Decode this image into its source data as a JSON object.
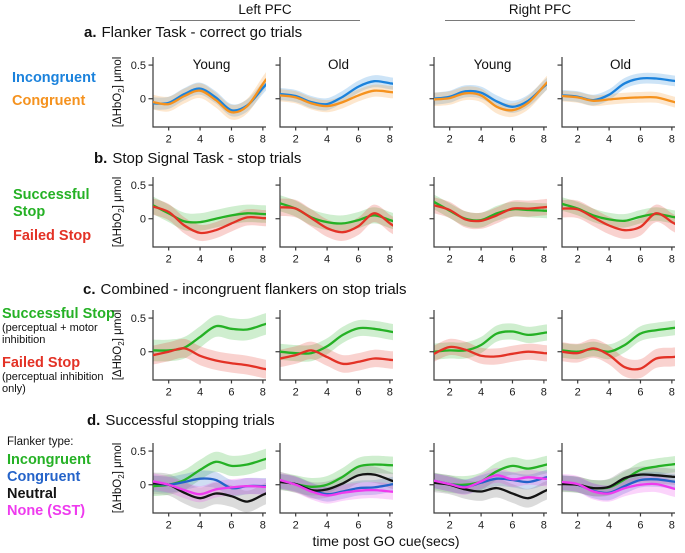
{
  "figure": {
    "region_headers": [
      "Left PFC",
      "Right PFC"
    ],
    "ylabel_pre": "[ΔHbO",
    "ylabel_sub": "2",
    "ylabel_post": "] μmol",
    "xlabel": "time post GO cue(secs)"
  },
  "rows": [
    {
      "label": "a.",
      "title": "Flanker Task - correct go trials",
      "legend": [
        {
          "label": "Incongruent",
          "color": "#1B82DC"
        },
        {
          "label": "Congruent",
          "color": "#F5921E"
        }
      ]
    },
    {
      "label": "b.",
      "title": "Stop Signal Task - stop trials",
      "legend": [
        {
          "label": "Successful Stop",
          "color": "#25B125"
        },
        {
          "label": "Failed Stop",
          "color": "#E33226"
        }
      ]
    },
    {
      "label": "c.",
      "title": "Combined - incongruent flankers on stop trials",
      "legend": [
        {
          "label": "Successful Stop",
          "color": "#25B125",
          "note": "(perceptual + motor inhibition"
        },
        {
          "label": "Failed Stop",
          "color": "#E33226",
          "note": "(perceptual inhibition only)"
        }
      ]
    },
    {
      "label": "d.",
      "title": "Successful stopping trials",
      "legend_header": "Flanker type:",
      "legend": [
        {
          "label": "Incongruent",
          "color": "#25B125"
        },
        {
          "label": "Congruent",
          "color": "#2463C9"
        },
        {
          "label": "Neutral",
          "color": "#141414"
        },
        {
          "label": "None (SST)",
          "color": "#EE3BEE"
        }
      ]
    }
  ],
  "chart_data": {
    "type": "line",
    "x": [
      1,
      2,
      3,
      4,
      5,
      6,
      7,
      8
    ],
    "xlabel": "time post GO cue(secs)",
    "ylabel": "[ΔHbO2] μmol",
    "ylim": [
      -0.42,
      0.62
    ],
    "yticks": [
      0.5,
      0
    ],
    "ytick_labels": [
      "0.5",
      "0"
    ],
    "xticks": [
      2,
      4,
      6,
      8
    ],
    "grid": false,
    "panels": [
      {
        "row": "a",
        "region": "Left PFC",
        "group": "Young",
        "series": [
          {
            "name": "Incongruent",
            "color": "#1B82DC",
            "band": 0.09,
            "values": [
              -0.07,
              -0.06,
              0.07,
              0.15,
              0.02,
              -0.17,
              -0.1,
              0.16
            ]
          },
          {
            "name": "Congruent",
            "color": "#F5921E",
            "band": 0.11,
            "values": [
              -0.05,
              -0.08,
              0.04,
              0.12,
              -0.02,
              -0.2,
              -0.11,
              0.22
            ]
          }
        ]
      },
      {
        "row": "a",
        "region": "Left PFC",
        "group": "Old",
        "series": [
          {
            "name": "Incongruent",
            "color": "#1B82DC",
            "band": 0.09,
            "values": [
              0.07,
              0.04,
              -0.05,
              -0.08,
              0.03,
              0.18,
              0.26,
              0.23
            ]
          },
          {
            "name": "Congruent",
            "color": "#F5921E",
            "band": 0.09,
            "values": [
              0.05,
              0.02,
              -0.07,
              -0.11,
              -0.05,
              0.05,
              0.12,
              0.1
            ]
          }
        ]
      },
      {
        "row": "a",
        "region": "Right PFC",
        "group": "Young",
        "series": [
          {
            "name": "Incongruent",
            "color": "#1B82DC",
            "band": 0.09,
            "values": [
              0.0,
              0.03,
              0.11,
              0.09,
              -0.04,
              -0.12,
              -0.03,
              0.18
            ]
          },
          {
            "name": "Congruent",
            "color": "#F5921E",
            "band": 0.1,
            "values": [
              -0.01,
              0.01,
              0.08,
              0.05,
              -0.12,
              -0.17,
              -0.06,
              0.19
            ]
          }
        ]
      },
      {
        "row": "a",
        "region": "Right PFC",
        "group": "Old",
        "series": [
          {
            "name": "Incongruent",
            "color": "#1B82DC",
            "band": 0.08,
            "values": [
              0.05,
              0.03,
              -0.02,
              0.06,
              0.23,
              0.3,
              0.3,
              0.27
            ]
          },
          {
            "name": "Congruent",
            "color": "#F5921E",
            "band": 0.08,
            "values": [
              0.04,
              0.02,
              -0.03,
              -0.01,
              0.01,
              0.02,
              0.02,
              -0.04
            ]
          }
        ]
      },
      {
        "row": "b",
        "region": "Left PFC",
        "group": "Young",
        "series": [
          {
            "name": "Successful Stop",
            "color": "#25B125",
            "band": 0.13,
            "values": [
              0.2,
              0.08,
              -0.04,
              -0.05,
              0.0,
              0.05,
              0.08,
              0.07
            ]
          },
          {
            "name": "Failed Stop",
            "color": "#E33226",
            "band": 0.12,
            "values": [
              0.18,
              0.1,
              -0.1,
              -0.21,
              -0.17,
              -0.07,
              0.02,
              0.01
            ]
          }
        ]
      },
      {
        "row": "b",
        "region": "Left PFC",
        "group": "Old",
        "series": [
          {
            "name": "Successful Stop",
            "color": "#25B125",
            "band": 0.12,
            "values": [
              0.23,
              0.15,
              0.02,
              -0.05,
              -0.07,
              -0.02,
              0.05,
              -0.02
            ]
          },
          {
            "name": "Failed Stop",
            "color": "#E33226",
            "band": 0.13,
            "values": [
              0.17,
              0.15,
              0.01,
              -0.14,
              -0.2,
              -0.11,
              0.08,
              -0.07
            ]
          }
        ]
      },
      {
        "row": "b",
        "region": "Right PFC",
        "group": "Young",
        "series": [
          {
            "name": "Successful Stop",
            "color": "#25B125",
            "band": 0.11,
            "values": [
              0.25,
              0.12,
              0.0,
              -0.02,
              0.08,
              0.14,
              0.13,
              0.12
            ]
          },
          {
            "name": "Failed Stop",
            "color": "#E33226",
            "band": 0.12,
            "values": [
              0.2,
              0.13,
              -0.01,
              -0.03,
              0.05,
              0.15,
              0.15,
              0.17
            ]
          }
        ]
      },
      {
        "row": "b",
        "region": "Right PFC",
        "group": "Old",
        "series": [
          {
            "name": "Successful Stop",
            "color": "#25B125",
            "band": 0.1,
            "values": [
              0.22,
              0.15,
              0.05,
              -0.01,
              -0.03,
              0.03,
              0.07,
              0.03
            ]
          },
          {
            "name": "Failed Stop",
            "color": "#E33226",
            "band": 0.13,
            "values": [
              0.15,
              0.14,
              0.02,
              -0.1,
              -0.17,
              -0.12,
              0.08,
              -0.05
            ]
          }
        ]
      },
      {
        "row": "c",
        "region": "Left PFC",
        "group": "Young",
        "series": [
          {
            "name": "Successful Stop",
            "color": "#25B125",
            "band": 0.16,
            "values": [
              0.02,
              0.02,
              0.06,
              0.22,
              0.38,
              0.34,
              0.33,
              0.4
            ]
          },
          {
            "name": "Failed Stop",
            "color": "#E33226",
            "band": 0.14,
            "values": [
              -0.05,
              0.0,
              0.05,
              -0.06,
              -0.13,
              -0.17,
              -0.2,
              -0.25
            ]
          }
        ]
      },
      {
        "row": "c",
        "region": "Left PFC",
        "group": "Old",
        "series": [
          {
            "name": "Successful Stop",
            "color": "#25B125",
            "band": 0.12,
            "values": [
              0.0,
              -0.02,
              -0.02,
              0.08,
              0.25,
              0.35,
              0.34,
              0.3
            ]
          },
          {
            "name": "Failed Stop",
            "color": "#E33226",
            "band": 0.13,
            "values": [
              -0.1,
              -0.05,
              0.02,
              -0.08,
              -0.18,
              -0.15,
              -0.1,
              -0.12
            ]
          }
        ]
      },
      {
        "row": "c",
        "region": "Right PFC",
        "group": "Young",
        "series": [
          {
            "name": "Successful Stop",
            "color": "#25B125",
            "band": 0.12,
            "values": [
              0.0,
              0.02,
              0.02,
              0.1,
              0.27,
              0.3,
              0.25,
              0.28
            ]
          },
          {
            "name": "Failed Stop",
            "color": "#E33226",
            "band": 0.12,
            "values": [
              -0.03,
              0.07,
              0.03,
              -0.06,
              -0.07,
              -0.03,
              0.0,
              -0.02
            ]
          }
        ]
      },
      {
        "row": "c",
        "region": "Right PFC",
        "group": "Old",
        "series": [
          {
            "name": "Successful Stop",
            "color": "#25B125",
            "band": 0.11,
            "values": [
              0.02,
              0.0,
              0.04,
              0.0,
              0.1,
              0.27,
              0.32,
              0.35
            ]
          },
          {
            "name": "Failed Stop",
            "color": "#E33226",
            "band": 0.14,
            "values": [
              0.0,
              -0.02,
              0.05,
              -0.05,
              -0.23,
              -0.25,
              -0.1,
              -0.08
            ]
          }
        ]
      },
      {
        "row": "d",
        "region": "Left PFC",
        "group": "Young",
        "series": [
          {
            "name": "Incongruent",
            "color": "#25B125",
            "band": 0.15,
            "values": [
              -0.02,
              0.0,
              0.07,
              0.22,
              0.34,
              0.28,
              0.3,
              0.37
            ]
          },
          {
            "name": "Congruent",
            "color": "#2463C9",
            "band": 0.12,
            "values": [
              0.02,
              0.0,
              0.04,
              0.09,
              0.07,
              -0.05,
              -0.02,
              -0.02
            ]
          },
          {
            "name": "Neutral",
            "color": "#141414",
            "band": 0.16,
            "values": [
              0.02,
              0.0,
              -0.12,
              -0.2,
              -0.13,
              -0.17,
              -0.25,
              -0.15
            ]
          },
          {
            "name": "None (SST)",
            "color": "#EE3BEE",
            "band": 0.12,
            "values": [
              0.05,
              0.0,
              -0.08,
              -0.14,
              -0.07,
              -0.04,
              -0.02,
              -0.03
            ]
          }
        ]
      },
      {
        "row": "d",
        "region": "Left PFC",
        "group": "Old",
        "series": [
          {
            "name": "Incongruent",
            "color": "#25B125",
            "band": 0.13,
            "values": [
              0.06,
              0.01,
              -0.03,
              0.0,
              0.12,
              0.27,
              0.3,
              0.29
            ]
          },
          {
            "name": "Congruent",
            "color": "#2463C9",
            "band": 0.11,
            "values": [
              0.05,
              0.01,
              -0.08,
              -0.14,
              -0.1,
              -0.05,
              -0.04,
              0.0
            ]
          },
          {
            "name": "Neutral",
            "color": "#141414",
            "band": 0.12,
            "values": [
              0.04,
              0.01,
              -0.08,
              -0.07,
              0.02,
              0.14,
              0.15,
              0.07
            ]
          },
          {
            "name": "None (SST)",
            "color": "#EE3BEE",
            "band": 0.12,
            "values": [
              0.07,
              0.0,
              -0.1,
              -0.16,
              -0.12,
              -0.09,
              -0.08,
              -0.1
            ]
          }
        ]
      },
      {
        "row": "d",
        "region": "Right PFC",
        "group": "Young",
        "series": [
          {
            "name": "Incongruent",
            "color": "#25B125",
            "band": 0.13,
            "values": [
              0.05,
              0.01,
              0.0,
              0.05,
              0.2,
              0.28,
              0.24,
              0.29
            ]
          },
          {
            "name": "Congruent",
            "color": "#2463C9",
            "band": 0.11,
            "values": [
              0.06,
              0.01,
              -0.03,
              0.03,
              0.09,
              0.07,
              0.04,
              0.1
            ]
          },
          {
            "name": "Neutral",
            "color": "#141414",
            "band": 0.14,
            "values": [
              0.03,
              0.0,
              -0.07,
              -0.1,
              -0.05,
              -0.13,
              -0.2,
              -0.1
            ]
          },
          {
            "name": "None (SST)",
            "color": "#EE3BEE",
            "band": 0.11,
            "values": [
              0.06,
              0.01,
              -0.04,
              0.05,
              0.14,
              0.08,
              0.11,
              0.09
            ]
          }
        ]
      },
      {
        "row": "d",
        "region": "Right PFC",
        "group": "Old",
        "series": [
          {
            "name": "Incongruent",
            "color": "#25B125",
            "band": 0.12,
            "values": [
              0.02,
              0.0,
              -0.05,
              -0.04,
              0.08,
              0.22,
              0.27,
              0.3
            ]
          },
          {
            "name": "Congruent",
            "color": "#2463C9",
            "band": 0.11,
            "values": [
              0.03,
              0.0,
              -0.09,
              -0.12,
              -0.02,
              0.07,
              0.08,
              0.05
            ]
          },
          {
            "name": "Neutral",
            "color": "#141414",
            "band": 0.12,
            "values": [
              0.01,
              0.0,
              -0.05,
              -0.03,
              0.1,
              0.15,
              0.14,
              0.12
            ]
          },
          {
            "name": "None (SST)",
            "color": "#EE3BEE",
            "band": 0.12,
            "values": [
              0.04,
              0.01,
              -0.1,
              -0.13,
              -0.05,
              0.0,
              0.01,
              -0.05
            ]
          }
        ]
      }
    ]
  }
}
